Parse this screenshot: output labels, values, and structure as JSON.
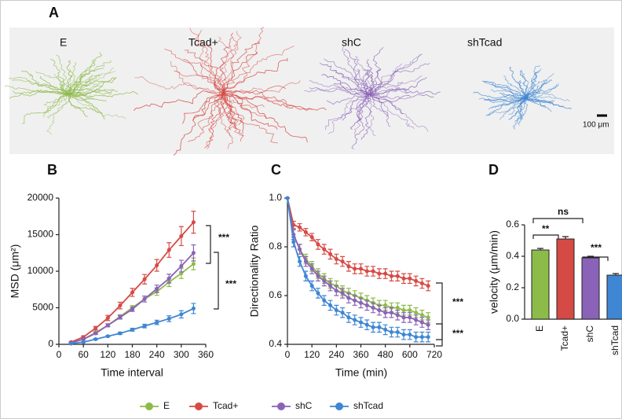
{
  "panel_a": {
    "label": "A",
    "groups": [
      "E",
      "Tcad+",
      "shC",
      "shTcad"
    ],
    "scale_bar": "100 μm"
  },
  "chart_data": [
    {
      "type": "line",
      "panel": "B",
      "x_label": "Time interval",
      "y_label": "MSD (μm²)",
      "x": [
        30,
        60,
        90,
        120,
        150,
        180,
        210,
        240,
        270,
        300,
        330
      ],
      "xlim": [
        0,
        360
      ],
      "xticks": [
        0,
        60,
        120,
        180,
        240,
        300,
        360
      ],
      "ylim": [
        0,
        20000
      ],
      "yticks": [
        0,
        5000,
        10000,
        15000,
        20000
      ],
      "series": [
        {
          "name": "E",
          "color": "#8dbb4a",
          "values": [
            200,
            700,
            1600,
            2600,
            3800,
            5000,
            6200,
            7200,
            8500,
            9700,
            11000
          ],
          "errors": [
            50,
            100,
            150,
            200,
            250,
            300,
            400,
            500,
            600,
            700,
            800
          ]
        },
        {
          "name": "Tcad+",
          "color": "#d64a45",
          "values": [
            300,
            1000,
            2200,
            3600,
            5300,
            7100,
            8900,
            10800,
            12900,
            14800,
            16700
          ],
          "errors": [
            80,
            150,
            250,
            350,
            450,
            550,
            650,
            800,
            1000,
            1300,
            1500
          ]
        },
        {
          "name": "shC",
          "color": "#8a63b8",
          "values": [
            200,
            700,
            1500,
            2600,
            3700,
            4800,
            6200,
            7600,
            9000,
            10700,
            12500
          ],
          "errors": [
            50,
            100,
            150,
            200,
            250,
            300,
            400,
            500,
            600,
            800,
            1100
          ]
        },
        {
          "name": "shTcad",
          "color": "#3f86d3",
          "values": [
            100,
            300,
            700,
            1100,
            1500,
            2000,
            2500,
            3000,
            3500,
            4100,
            4900
          ],
          "errors": [
            30,
            50,
            80,
            100,
            150,
            200,
            250,
            300,
            400,
            500,
            700
          ]
        }
      ],
      "annotations": [
        "***",
        "***"
      ]
    },
    {
      "type": "line",
      "panel": "C",
      "x_label": "Time (min)",
      "y_label": "Directionality Ratio",
      "x": [
        0,
        30,
        60,
        90,
        120,
        150,
        180,
        210,
        240,
        270,
        300,
        330,
        360,
        390,
        420,
        450,
        480,
        510,
        540,
        570,
        600,
        630,
        660,
        690
      ],
      "xlim": [
        0,
        720
      ],
      "xticks": [
        0,
        120,
        240,
        360,
        480,
        600,
        720
      ],
      "ylim": [
        0.4,
        1
      ],
      "yticks": [
        0.4,
        0.6,
        0.8,
        {
          "value": 1,
          "label": "1.0"
        }
      ],
      "series": [
        {
          "color": "#8dbb4a",
          "values": [
            1,
            0.85,
            0.79,
            0.75,
            0.72,
            0.69,
            0.67,
            0.65,
            0.64,
            0.62,
            0.61,
            0.6,
            0.59,
            0.58,
            0.57,
            0.56,
            0.56,
            0.55,
            0.55,
            0.54,
            0.54,
            0.53,
            0.52,
            0.51
          ],
          "errors": [
            0,
            0.02,
            0.02,
            0.02,
            0.02,
            0.02,
            0.02,
            0.02,
            0.02,
            0.02,
            0.02,
            0.02,
            0.02,
            0.02,
            0.02,
            0.02,
            0.02,
            0.02,
            0.02,
            0.02,
            0.02,
            0.02,
            0.02,
            0.02
          ]
        },
        {
          "color": "#d64a45",
          "values": [
            1,
            0.89,
            0.88,
            0.86,
            0.84,
            0.81,
            0.79,
            0.77,
            0.75,
            0.74,
            0.72,
            0.71,
            0.71,
            0.7,
            0.7,
            0.69,
            0.69,
            0.68,
            0.68,
            0.67,
            0.67,
            0.66,
            0.65,
            0.64
          ],
          "errors": [
            0,
            0.015,
            0.015,
            0.015,
            0.015,
            0.02,
            0.02,
            0.02,
            0.02,
            0.02,
            0.02,
            0.02,
            0.02,
            0.02,
            0.02,
            0.02,
            0.02,
            0.02,
            0.02,
            0.02,
            0.02,
            0.02,
            0.02,
            0.02
          ]
        },
        {
          "color": "#8a63b8",
          "values": [
            1,
            0.85,
            0.79,
            0.74,
            0.71,
            0.68,
            0.66,
            0.64,
            0.62,
            0.61,
            0.59,
            0.58,
            0.57,
            0.56,
            0.55,
            0.54,
            0.53,
            0.53,
            0.52,
            0.51,
            0.51,
            0.5,
            0.49,
            0.48
          ],
          "errors": [
            0,
            0.02,
            0.02,
            0.02,
            0.02,
            0.02,
            0.02,
            0.02,
            0.02,
            0.02,
            0.02,
            0.02,
            0.02,
            0.02,
            0.02,
            0.02,
            0.02,
            0.02,
            0.02,
            0.02,
            0.02,
            0.02,
            0.02,
            0.02
          ]
        },
        {
          "color": "#3f86d3",
          "values": [
            1,
            0.82,
            0.74,
            0.68,
            0.64,
            0.61,
            0.58,
            0.56,
            0.54,
            0.53,
            0.51,
            0.5,
            0.49,
            0.48,
            0.47,
            0.47,
            0.46,
            0.45,
            0.45,
            0.44,
            0.44,
            0.43,
            0.43,
            0.43
          ],
          "errors": [
            0,
            0.02,
            0.02,
            0.02,
            0.02,
            0.02,
            0.02,
            0.02,
            0.02,
            0.02,
            0.02,
            0.02,
            0.02,
            0.02,
            0.02,
            0.02,
            0.02,
            0.02,
            0.02,
            0.02,
            0.02,
            0.02,
            0.02,
            0.02
          ]
        }
      ],
      "annotations": [
        "***",
        "***"
      ]
    },
    {
      "type": "bar",
      "panel": "D",
      "y_label": "velocity (μm/min)",
      "categories": [
        "E",
        "Tcad+",
        "shC",
        "shTcad"
      ],
      "values": [
        0.44,
        0.51,
        0.39,
        0.28
      ],
      "errors": [
        0.01,
        0.015,
        0.01,
        0.01
      ],
      "colors": [
        "#8dbb4a",
        "#d64a45",
        "#8a63b8",
        "#3f86d3"
      ],
      "ylim": [
        0,
        0.6
      ],
      "yticks": [
        {
          "value": 0,
          "label": "0.0"
        },
        0.2,
        0.4,
        0.6
      ],
      "annotations": [
        "ns",
        "**",
        "***"
      ]
    }
  ]
}
